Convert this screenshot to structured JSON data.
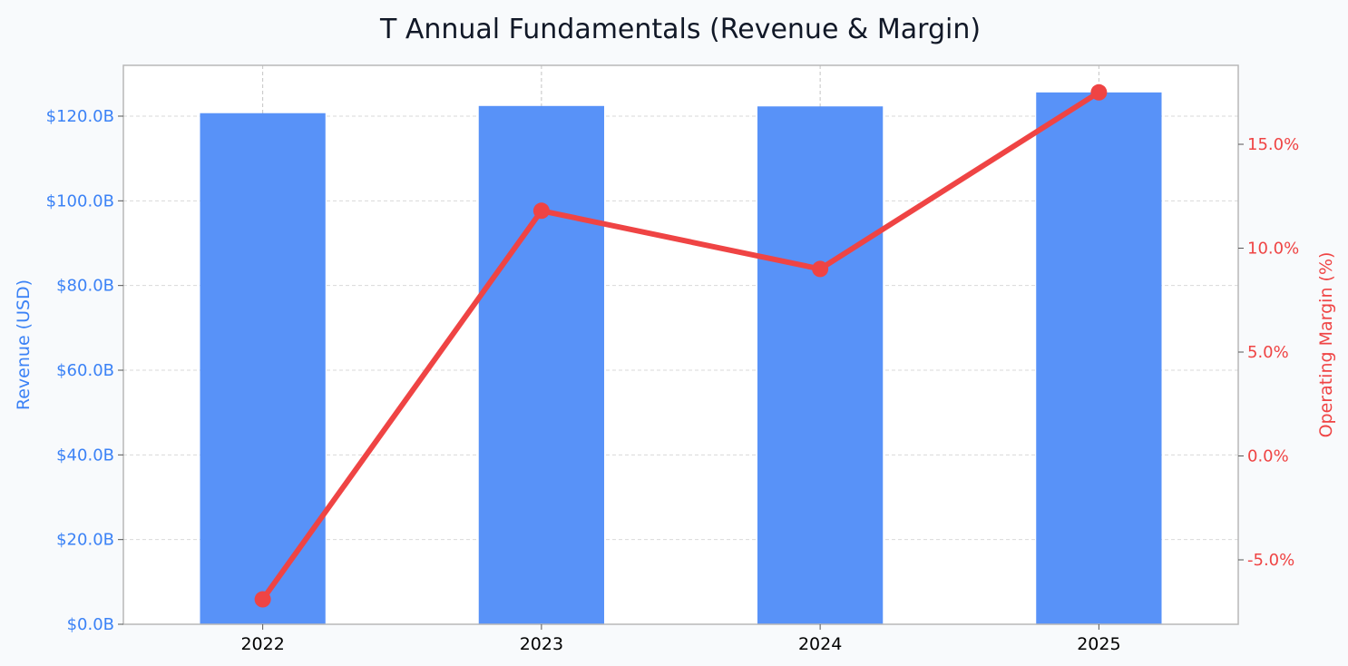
{
  "colors": {
    "page_background": "#f8fafc",
    "plot_background": "#ffffff",
    "revenue": "#3b82f6",
    "bar_fill": "#5892f8",
    "margin": "#ef4444",
    "title": "#111827",
    "frame": "#b8b8b8",
    "grid": "#d9d9d9"
  },
  "chart_data": {
    "type": "bar+line",
    "title": "T Annual Fundamentals (Revenue & Margin)",
    "categories": [
      "2022",
      "2023",
      "2024",
      "2025"
    ],
    "series": [
      {
        "name": "Revenue",
        "type": "bar",
        "axis": "left",
        "values": [
          120.7,
          122.4,
          122.3,
          125.6
        ],
        "unit": "USD billions"
      },
      {
        "name": "Operating Margin",
        "type": "line",
        "axis": "right",
        "values": [
          -6.9,
          11.8,
          9.0,
          17.5
        ],
        "unit": "percent"
      }
    ],
    "y_left": {
      "label": "Revenue (USD)",
      "ticks": [
        "$0.0B",
        "$20.0B",
        "$40.0B",
        "$60.0B",
        "$80.0B",
        "$100.0B",
        "$120.0B"
      ],
      "tick_values": [
        0,
        20,
        40,
        60,
        80,
        100,
        120
      ],
      "ylim": [
        0,
        132
      ]
    },
    "y_right": {
      "label": "Operating Margin (%)",
      "ticks": [
        "-5.0%",
        "0.0%",
        "5.0%",
        "10.0%",
        "15.0%"
      ],
      "tick_values": [
        -5,
        0,
        5,
        10,
        15
      ],
      "ylim": [
        -8.1,
        18.8
      ]
    },
    "grid": true,
    "legend": "none"
  }
}
